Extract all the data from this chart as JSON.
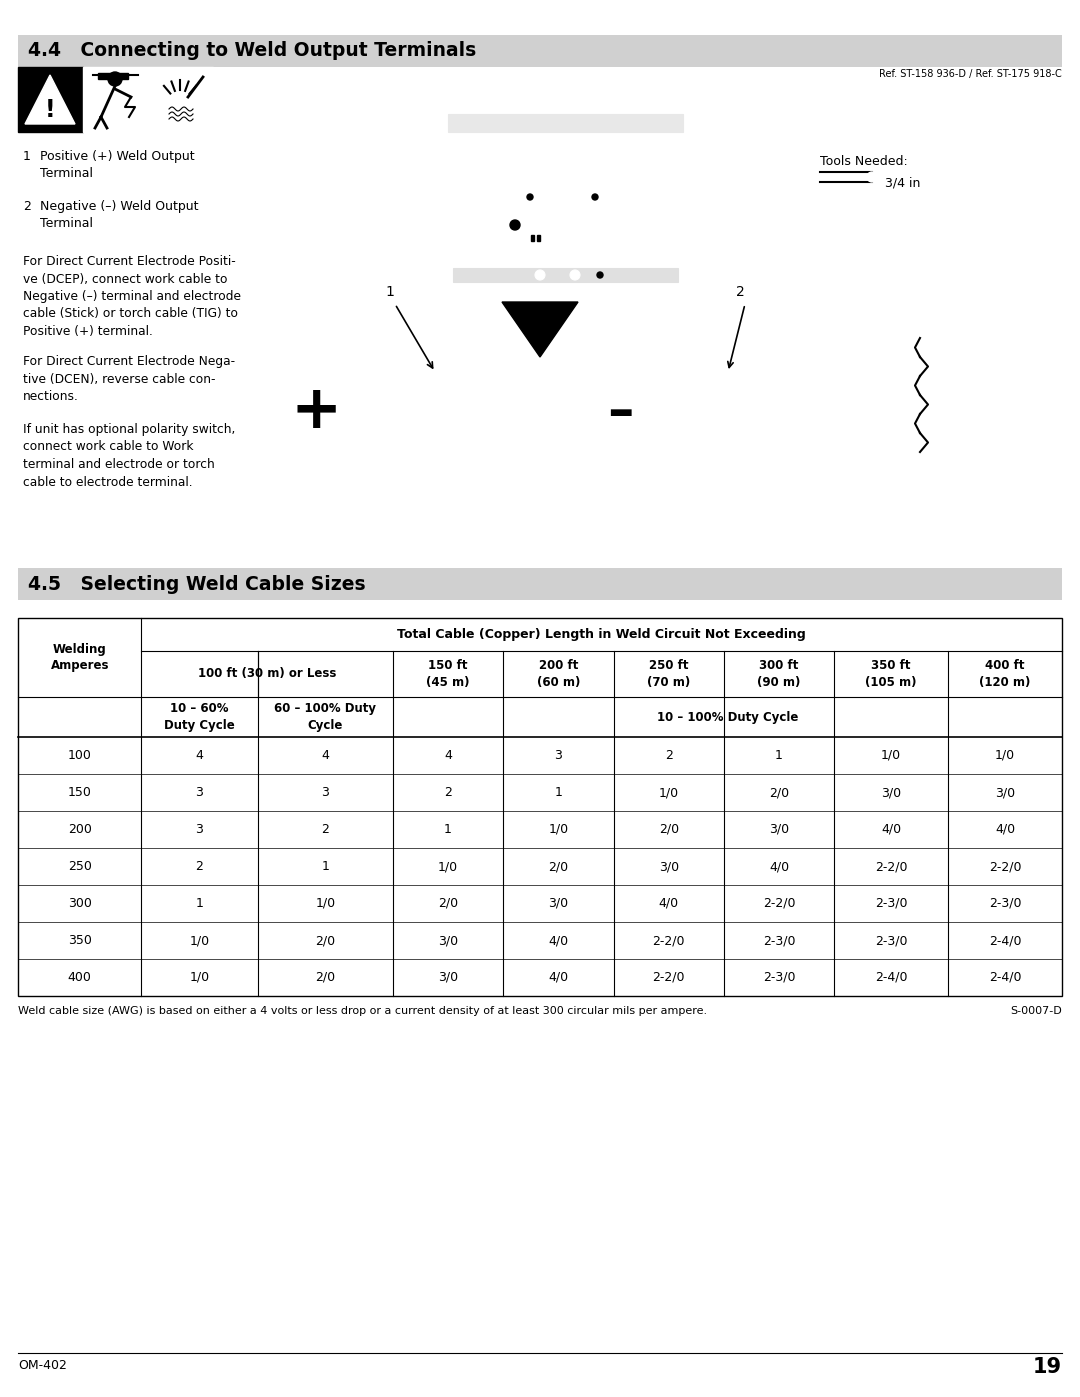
{
  "page_bg": "#ffffff",
  "section44_title": "4.4   Connecting to Weld Output Terminals",
  "section45_title": "4.5   Selecting Weld Cable Sizes",
  "header_bg": "#d0d0d0",
  "ref_text": "Ref. ST-158 936-D / Ref. ST-175 918-C",
  "tools_text1": "Tools Needed:",
  "tools_text2": "3/4 in",
  "item1_num": "1",
  "item1_text": "Positive (+) Weld Output\nTerminal",
  "item2_num": "2",
  "item2_text": "Negative (–) Weld Output\nTerminal",
  "para1": "For Direct Current Electrode Positi-\nve (DCEP), connect work cable to\nNegative (–) terminal and electrode\ncable (Stick) or torch cable (TIG) to\nPositive (+) terminal.",
  "para2": "For Direct Current Electrode Nega-\ntive (DCEN), reverse cable con-\nnections.",
  "para3": "If unit has optional polarity switch,\nconnect work cable to Work\nterminal and electrode or torch\ncable to electrode terminal.",
  "table_header": "Total Cable (Copper) Length in Weld Circuit Not Exceeding",
  "welding_amperes": "Welding\nAmperes",
  "col100": "100 ft (30 m) or Less",
  "col150": "150 ft\n(45 m)",
  "col200": "200 ft\n(60 m)",
  "col250": "250 ft\n(70 m)",
  "col300": "300 ft\n(90 m)",
  "col350": "350 ft\n(105 m)",
  "col400": "400 ft\n(120 m)",
  "sub1": "10 – 60%\nDuty Cycle",
  "sub2": "60 – 100% Duty\nCycle",
  "sub3": "10 – 100% Duty Cycle",
  "rows": [
    [
      "100",
      "4",
      "4",
      "4",
      "3",
      "2",
      "1",
      "1/0",
      "1/0"
    ],
    [
      "150",
      "3",
      "3",
      "2",
      "1",
      "1/0",
      "2/0",
      "3/0",
      "3/0"
    ],
    [
      "200",
      "3",
      "2",
      "1",
      "1/0",
      "2/0",
      "3/0",
      "4/0",
      "4/0"
    ],
    [
      "250",
      "2",
      "1",
      "1/0",
      "2/0",
      "3/0",
      "4/0",
      "2-2/0",
      "2-2/0"
    ],
    [
      "300",
      "1",
      "1/0",
      "2/0",
      "3/0",
      "4/0",
      "2-2/0",
      "2-3/0",
      "2-3/0"
    ],
    [
      "350",
      "1/0",
      "2/0",
      "3/0",
      "4/0",
      "2-2/0",
      "2-3/0",
      "2-3/0",
      "2-4/0"
    ],
    [
      "400",
      "1/0",
      "2/0",
      "3/0",
      "4/0",
      "2-2/0",
      "2-3/0",
      "2-4/0",
      "2-4/0"
    ]
  ],
  "footnote": "Weld cable size (AWG) is based on either a 4 volts or less drop or a current density of at least 300 circular mils per ampere.",
  "footnote_ref": "S-0007-D",
  "page_number": "19",
  "om_ref": "OM-402"
}
